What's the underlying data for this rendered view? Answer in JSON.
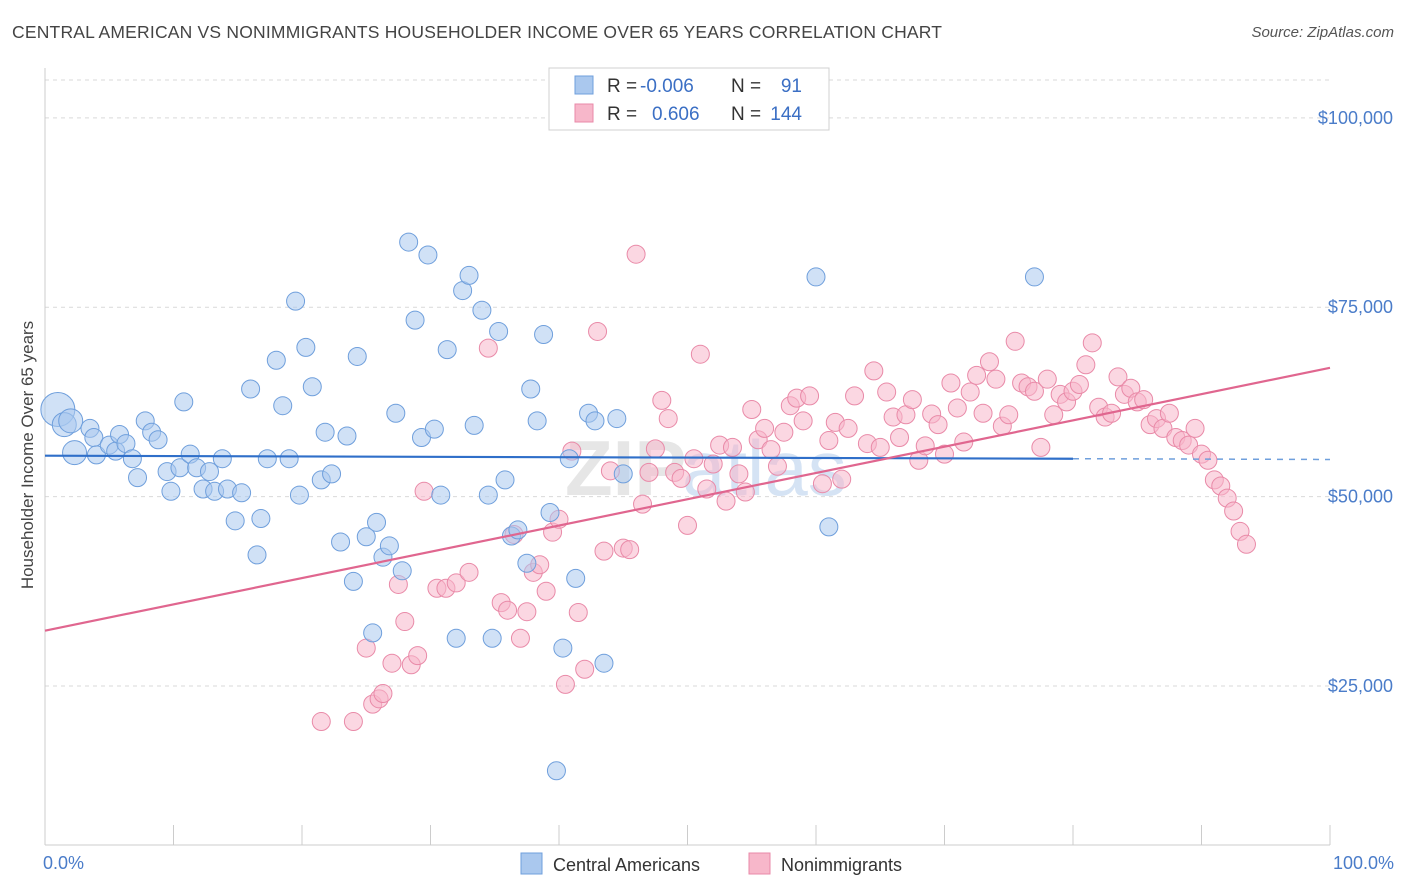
{
  "title": "CENTRAL AMERICAN VS NONIMMIGRANTS HOUSEHOLDER INCOME OVER 65 YEARS CORRELATION CHART",
  "source": "Source: ZipAtlas.com",
  "watermark": {
    "zip": "ZIP",
    "atlas": "atlas"
  },
  "colors": {
    "blue_fill": "#aac8ee",
    "blue_stroke": "#6f9fdc",
    "blue_line": "#2f6fc9",
    "pink_fill": "#f7b7ca",
    "pink_stroke": "#e98aa8",
    "pink_line": "#e0668f",
    "grid": "#d9d9d9",
    "tick_text": "#4a7cc9"
  },
  "legend": {
    "rows": [
      {
        "r_label": "R =",
        "r_value": "-0.006",
        "n_label": "N =",
        "n_value": "91"
      },
      {
        "r_label": "R =",
        "r_value": "0.606",
        "n_label": "N =",
        "n_value": "144"
      }
    ]
  },
  "chart_data": {
    "type": "scatter",
    "title": "CENTRAL AMERICAN VS NONIMMIGRANTS HOUSEHOLDER INCOME OVER 65 YEARS CORRELATION CHART",
    "xlabel": "",
    "ylabel": "Householder Income Over 65 years",
    "xlim": [
      0,
      100
    ],
    "ylim": [
      4000,
      105000
    ],
    "x_tick_labels": [
      "0.0%",
      "100.0%"
    ],
    "y_ticks": [
      25000,
      50000,
      75000,
      100000
    ],
    "y_tick_labels": [
      "$25,000",
      "$50,000",
      "$75,000",
      "$100,000"
    ],
    "grid": true,
    "legend_position": "top-center",
    "series": [
      {
        "name": "Central Americans",
        "color": "#aac8ee",
        "trend": {
          "x": [
            0,
            80
          ],
          "y": [
            55400,
            55000
          ],
          "dashed_extension_to_x": 100
        },
        "points": [
          [
            1,
            61500
          ],
          [
            1.5,
            59500
          ],
          [
            2,
            60000
          ],
          [
            2.3,
            55800
          ],
          [
            3.5,
            59000
          ],
          [
            3.8,
            57800
          ],
          [
            4,
            55500
          ],
          [
            5,
            56800
          ],
          [
            5.5,
            56000
          ],
          [
            5.8,
            58200
          ],
          [
            6.3,
            57000
          ],
          [
            6.8,
            55000
          ],
          [
            7.2,
            52500
          ],
          [
            7.8,
            60000
          ],
          [
            8.3,
            58500
          ],
          [
            8.8,
            57500
          ],
          [
            9.5,
            53300
          ],
          [
            9.8,
            50700
          ],
          [
            10.5,
            53800
          ],
          [
            10.8,
            62500
          ],
          [
            11.3,
            55600
          ],
          [
            11.8,
            53800
          ],
          [
            12.3,
            51000
          ],
          [
            12.8,
            53300
          ],
          [
            13.2,
            50700
          ],
          [
            13.8,
            55000
          ],
          [
            14.2,
            51000
          ],
          [
            14.8,
            46800
          ],
          [
            15.3,
            50500
          ],
          [
            16,
            64200
          ],
          [
            16.5,
            42300
          ],
          [
            16.8,
            47100
          ],
          [
            17.3,
            55000
          ],
          [
            18,
            68000
          ],
          [
            18.5,
            62000
          ],
          [
            19,
            55000
          ],
          [
            19.5,
            75800
          ],
          [
            19.8,
            50200
          ],
          [
            20.3,
            69700
          ],
          [
            20.8,
            64500
          ],
          [
            21.5,
            52200
          ],
          [
            21.8,
            58500
          ],
          [
            22.3,
            53000
          ],
          [
            23,
            44000
          ],
          [
            23.5,
            58000
          ],
          [
            24,
            38800
          ],
          [
            24.3,
            68500
          ],
          [
            25,
            44700
          ],
          [
            25.5,
            32000
          ],
          [
            25.8,
            46600
          ],
          [
            26.3,
            42000
          ],
          [
            26.8,
            43500
          ],
          [
            27.3,
            61000
          ],
          [
            27.8,
            40200
          ],
          [
            28.3,
            83600
          ],
          [
            28.8,
            73300
          ],
          [
            29.3,
            57800
          ],
          [
            29.8,
            81900
          ],
          [
            30.3,
            58900
          ],
          [
            30.8,
            50200
          ],
          [
            31.3,
            69400
          ],
          [
            32,
            31300
          ],
          [
            32.5,
            77200
          ],
          [
            33,
            79200
          ],
          [
            33.4,
            59400
          ],
          [
            34,
            74600
          ],
          [
            34.5,
            50200
          ],
          [
            34.8,
            31300
          ],
          [
            35.3,
            71800
          ],
          [
            35.8,
            52200
          ],
          [
            36.3,
            44800
          ],
          [
            36.8,
            45600
          ],
          [
            37.5,
            41200
          ],
          [
            37.8,
            64200
          ],
          [
            38.3,
            60000
          ],
          [
            38.8,
            71400
          ],
          [
            39.3,
            47900
          ],
          [
            39.8,
            13800
          ],
          [
            40.3,
            30000
          ],
          [
            40.8,
            55000
          ],
          [
            41.3,
            39200
          ],
          [
            42.3,
            61000
          ],
          [
            42.8,
            60000
          ],
          [
            43.5,
            28000
          ],
          [
            44.5,
            60300
          ],
          [
            45,
            53000
          ],
          [
            60,
            79000
          ],
          [
            61,
            46000
          ],
          [
            77,
            79000
          ]
        ],
        "point_sizes_note": "a few leftmost points are larger"
      },
      {
        "name": "Nonimmigrants",
        "color": "#f7b7ca",
        "trend": {
          "x": [
            0,
            100
          ],
          "y": [
            32300,
            67000
          ]
        },
        "points": [
          [
            21.5,
            20300
          ],
          [
            24,
            20300
          ],
          [
            25,
            30000
          ],
          [
            25.5,
            22600
          ],
          [
            26,
            23300
          ],
          [
            26.3,
            24000
          ],
          [
            27,
            28000
          ],
          [
            27.5,
            38400
          ],
          [
            28,
            33500
          ],
          [
            28.5,
            27800
          ],
          [
            29,
            29000
          ],
          [
            29.5,
            50700
          ],
          [
            30.5,
            37900
          ],
          [
            31.2,
            37900
          ],
          [
            32,
            38600
          ],
          [
            33,
            40000
          ],
          [
            34.5,
            69600
          ],
          [
            35.5,
            36000
          ],
          [
            36,
            35000
          ],
          [
            36.5,
            45000
          ],
          [
            37,
            31300
          ],
          [
            37.5,
            34800
          ],
          [
            38,
            40000
          ],
          [
            38.5,
            41000
          ],
          [
            39,
            37500
          ],
          [
            39.5,
            45300
          ],
          [
            40,
            47000
          ],
          [
            40.5,
            25200
          ],
          [
            41,
            56000
          ],
          [
            41.5,
            34700
          ],
          [
            42,
            27200
          ],
          [
            43,
            71800
          ],
          [
            43.5,
            42800
          ],
          [
            44,
            53400
          ],
          [
            45,
            43200
          ],
          [
            45.5,
            43000
          ],
          [
            46,
            82000
          ],
          [
            46.5,
            49000
          ],
          [
            47,
            53200
          ],
          [
            47.5,
            56300
          ],
          [
            48,
            62700
          ],
          [
            48.5,
            60300
          ],
          [
            49,
            53200
          ],
          [
            49.5,
            52400
          ],
          [
            50,
            46200
          ],
          [
            50.5,
            55000
          ],
          [
            51,
            68800
          ],
          [
            51.5,
            51000
          ],
          [
            52,
            54300
          ],
          [
            52.5,
            56800
          ],
          [
            53,
            49400
          ],
          [
            53.5,
            56500
          ],
          [
            54,
            53000
          ],
          [
            54.5,
            50600
          ],
          [
            55,
            61500
          ],
          [
            55.5,
            57500
          ],
          [
            56,
            59000
          ],
          [
            56.5,
            56200
          ],
          [
            57,
            54000
          ],
          [
            57.5,
            58500
          ],
          [
            58,
            62000
          ],
          [
            58.5,
            63000
          ],
          [
            59,
            60000
          ],
          [
            59.5,
            63300
          ],
          [
            60.5,
            51700
          ],
          [
            61,
            57400
          ],
          [
            61.5,
            59800
          ],
          [
            62,
            52300
          ],
          [
            62.5,
            59000
          ],
          [
            63,
            63300
          ],
          [
            64,
            57000
          ],
          [
            64.5,
            66600
          ],
          [
            65,
            56500
          ],
          [
            65.5,
            63800
          ],
          [
            66,
            60500
          ],
          [
            66.5,
            57800
          ],
          [
            67,
            60800
          ],
          [
            67.5,
            62800
          ],
          [
            68,
            54800
          ],
          [
            68.5,
            56700
          ],
          [
            69,
            60900
          ],
          [
            69.5,
            59500
          ],
          [
            70,
            55600
          ],
          [
            70.5,
            65000
          ],
          [
            71,
            61700
          ],
          [
            71.5,
            57200
          ],
          [
            72,
            63800
          ],
          [
            72.5,
            66000
          ],
          [
            73,
            61000
          ],
          [
            73.5,
            67800
          ],
          [
            74,
            65500
          ],
          [
            74.5,
            59300
          ],
          [
            75,
            60800
          ],
          [
            75.5,
            70500
          ],
          [
            76,
            65000
          ],
          [
            76.5,
            64500
          ],
          [
            77,
            63900
          ],
          [
            77.5,
            56500
          ],
          [
            78,
            65500
          ],
          [
            78.5,
            60800
          ],
          [
            79,
            63500
          ],
          [
            79.5,
            62500
          ],
          [
            80,
            63900
          ],
          [
            80.5,
            64800
          ],
          [
            81,
            67400
          ],
          [
            81.5,
            70300
          ],
          [
            82,
            61800
          ],
          [
            82.5,
            60500
          ],
          [
            83,
            61000
          ],
          [
            83.5,
            65800
          ],
          [
            84,
            63500
          ],
          [
            84.5,
            64300
          ],
          [
            85,
            62500
          ],
          [
            85.5,
            62800
          ],
          [
            86,
            59500
          ],
          [
            86.5,
            60300
          ],
          [
            87,
            59000
          ],
          [
            87.5,
            61000
          ],
          [
            88,
            57800
          ],
          [
            88.5,
            57400
          ],
          [
            89,
            56800
          ],
          [
            89.5,
            59000
          ],
          [
            90,
            55600
          ],
          [
            90.5,
            54800
          ],
          [
            91,
            52200
          ],
          [
            91.5,
            51400
          ],
          [
            92,
            49800
          ],
          [
            92.5,
            48100
          ],
          [
            93,
            45400
          ],
          [
            93.5,
            43700
          ]
        ]
      }
    ]
  },
  "bottom_legend": [
    {
      "label": "Central Americans"
    },
    {
      "label": "Nonimmigrants"
    }
  ]
}
